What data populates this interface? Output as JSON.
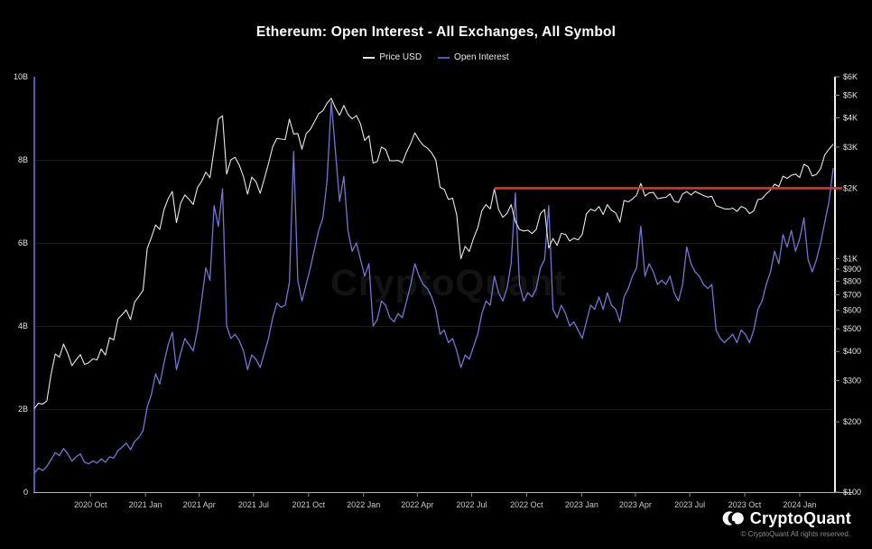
{
  "header": {
    "title": "Ethereum: Open Interest - All Exchanges, All Symbol"
  },
  "legend": {
    "items": [
      {
        "label": "Price USD",
        "color": "#9a9a9a"
      },
      {
        "label": "Open Interest",
        "color": "#504fb0"
      }
    ]
  },
  "watermark": "CryptoQuant",
  "footer": {
    "brand": "CryptoQuant",
    "copyright": "© CryptoQuant All rights reserved."
  },
  "chart_data": {
    "type": "line",
    "title": "Ethereum: Open Interest - All Exchanges, All Symbol",
    "x_start": "2020-06-29",
    "x_end": "2024-02-26",
    "interval": "weekly",
    "x_ticks": [
      {
        "label": "2020 Oct",
        "week_index": 13.43
      },
      {
        "label": "2021 Jan",
        "week_index": 26.57
      },
      {
        "label": "2021 Apr",
        "week_index": 39.43
      },
      {
        "label": "2021 Jul",
        "week_index": 52.43
      },
      {
        "label": "2021 Oct",
        "week_index": 65.57
      },
      {
        "label": "2022 Jan",
        "week_index": 78.71
      },
      {
        "label": "2022 Apr",
        "week_index": 91.57
      },
      {
        "label": "2022 Jul",
        "week_index": 104.57
      },
      {
        "label": "2022 Oct",
        "week_index": 117.71
      },
      {
        "label": "2023 Jan",
        "week_index": 130.86
      },
      {
        "label": "2023 Apr",
        "week_index": 143.71
      },
      {
        "label": "2023 Jul",
        "week_index": 156.71
      },
      {
        "label": "2023 Oct",
        "week_index": 169.86
      },
      {
        "label": "2024 Jan",
        "week_index": 183.0
      }
    ],
    "left_axis": {
      "name": "Open Interest (USD)",
      "scale": "linear",
      "range": [
        0,
        10
      ],
      "unit": "B",
      "ticks": [
        {
          "v": 10,
          "label": "10B"
        },
        {
          "v": 8,
          "label": "8B"
        },
        {
          "v": 6,
          "label": "6B"
        },
        {
          "v": 4,
          "label": "4B"
        },
        {
          "v": 2,
          "label": "2B"
        },
        {
          "v": 0,
          "label": "0"
        }
      ],
      "gridlines": [
        2,
        4,
        6,
        8
      ]
    },
    "right_axis": {
      "name": "Price USD",
      "scale": "log",
      "range": [
        100,
        6000
      ],
      "ticks": [
        {
          "v": 6000,
          "label": "$6K"
        },
        {
          "v": 5000,
          "label": "$5K"
        },
        {
          "v": 4000,
          "label": "$4K"
        },
        {
          "v": 3000,
          "label": "$3K"
        },
        {
          "v": 2000,
          "label": "$2K"
        },
        {
          "v": 1000,
          "label": "$1K"
        },
        {
          "v": 900,
          "label": "$900"
        },
        {
          "v": 800,
          "label": "$800"
        },
        {
          "v": 700,
          "label": "$700"
        },
        {
          "v": 600,
          "label": "$600"
        },
        {
          "v": 500,
          "label": "$500"
        },
        {
          "v": 400,
          "label": "$400"
        },
        {
          "v": 300,
          "label": "$300"
        },
        {
          "v": 200,
          "label": "$200"
        },
        {
          "v": 100,
          "label": "$100"
        }
      ]
    },
    "annotation_line": {
      "value": 2000,
      "start_week_index": 110,
      "color": "#e0312a"
    },
    "colors": {
      "background": "#000000",
      "price_line": "#e7e7e7",
      "oi_line": "#7673d2",
      "oi_axis": "#5553c2",
      "price_axis": "#efefef",
      "x_axis": "#b3b3b3",
      "grid": "#1a1a1a",
      "tick": "#8a8a8a"
    },
    "series": [
      {
        "name": "Price USD",
        "axis": "right",
        "values": [
          228,
          240,
          238,
          246,
          318,
          390,
          378,
          430,
          392,
          348,
          368,
          388,
          352,
          358,
          372,
          368,
          410,
          386,
          458,
          448,
          552,
          575,
          602,
          548,
          652,
          688,
          732,
          1105,
          1230,
          1392,
          1332,
          1615,
          1805,
          1938,
          1425,
          1730,
          1872,
          1792,
          1705,
          2012,
          2138,
          2345,
          2218,
          2945,
          3955,
          4085,
          2298,
          2645,
          2712,
          2512,
          2242,
          1885,
          2232,
          2132,
          1902,
          2192,
          2552,
          3012,
          3268,
          3248,
          3232,
          3952,
          3412,
          3432,
          2938,
          3422,
          3572,
          3852,
          4172,
          4292,
          4622,
          4850,
          4412,
          4108,
          4522,
          4138,
          3962,
          4092,
          3768,
          3202,
          3352,
          2562,
          2602,
          3002,
          2932,
          2622,
          2622,
          2628,
          2568,
          2862,
          3112,
          3452,
          3212,
          3052,
          2968,
          2832,
          2642,
          2018,
          1978,
          1792,
          1812,
          1532,
          998,
          1128,
          1072,
          1218,
          1352,
          1602,
          1702,
          1632,
          1985,
          1622,
          1502,
          1558,
          1702,
          1442,
          1332,
          1312,
          1322,
          1278,
          1332,
          1558,
          1622,
          1108,
          1218,
          1138,
          1282,
          1268,
          1188,
          1222,
          1202,
          1268,
          1552,
          1628,
          1598,
          1668,
          1542,
          1702,
          1608,
          1568,
          1432,
          1772,
          1748,
          1798,
          1868,
          2098,
          1852,
          1908,
          1918,
          1802,
          1818,
          1828,
          1892,
          1758,
          1738,
          1892,
          1932,
          1872,
          1938,
          1898,
          1862,
          1832,
          1848,
          1682,
          1658,
          1632,
          1628,
          1642,
          1592,
          1672,
          1642,
          1558,
          1598,
          1788,
          1802,
          1892,
          1962,
          2082,
          2032,
          2252,
          2202,
          2272,
          2298,
          2222,
          2532,
          2472,
          2258,
          2292,
          2428,
          2782,
          2942,
          3085
        ]
      },
      {
        "name": "Open Interest",
        "axis": "left",
        "values": [
          0.45,
          0.58,
          0.52,
          0.62,
          0.78,
          0.95,
          0.88,
          1.05,
          0.92,
          0.75,
          0.85,
          0.92,
          0.72,
          0.68,
          0.75,
          0.7,
          0.8,
          0.72,
          0.85,
          0.82,
          1.0,
          1.08,
          1.18,
          1.02,
          1.22,
          1.32,
          1.48,
          2.05,
          2.35,
          2.85,
          2.6,
          3.1,
          3.55,
          3.85,
          2.95,
          3.35,
          3.7,
          3.55,
          3.4,
          3.9,
          4.6,
          5.4,
          5.1,
          6.9,
          6.4,
          7.3,
          4.0,
          3.7,
          3.8,
          3.65,
          3.4,
          2.95,
          3.3,
          3.2,
          3.0,
          3.35,
          3.7,
          4.2,
          4.55,
          4.45,
          4.5,
          5.05,
          8.2,
          5.1,
          4.6,
          5.0,
          5.4,
          5.85,
          6.3,
          6.6,
          7.5,
          9.4,
          8.2,
          7.0,
          7.6,
          6.3,
          5.8,
          6.0,
          5.6,
          5.2,
          5.5,
          4.0,
          4.15,
          4.6,
          4.5,
          4.2,
          4.1,
          4.3,
          4.2,
          4.6,
          5.0,
          5.5,
          5.2,
          5.0,
          4.9,
          4.7,
          4.4,
          3.8,
          3.9,
          3.6,
          3.7,
          3.4,
          3.0,
          3.3,
          3.2,
          3.5,
          3.8,
          4.3,
          4.6,
          4.5,
          5.2,
          4.8,
          4.6,
          4.9,
          5.5,
          7.2,
          5.0,
          4.6,
          4.8,
          4.7,
          4.9,
          5.4,
          5.6,
          6.9,
          4.4,
          4.2,
          4.5,
          4.3,
          4.0,
          4.1,
          3.9,
          3.7,
          4.1,
          4.5,
          4.4,
          4.7,
          4.4,
          4.8,
          4.5,
          4.4,
          4.1,
          4.7,
          4.9,
          5.2,
          5.4,
          6.4,
          5.2,
          5.5,
          5.3,
          5.0,
          5.1,
          5.0,
          5.2,
          4.8,
          4.6,
          5.0,
          5.9,
          5.5,
          5.3,
          5.2,
          5.0,
          4.9,
          5.0,
          3.9,
          3.7,
          3.6,
          3.7,
          3.8,
          3.6,
          3.9,
          3.8,
          3.6,
          3.9,
          4.4,
          4.6,
          5.0,
          5.3,
          5.8,
          5.5,
          6.2,
          5.9,
          6.3,
          5.8,
          6.1,
          6.6,
          5.6,
          5.3,
          5.6,
          6.0,
          6.5,
          7.0,
          7.8
        ]
      }
    ]
  }
}
